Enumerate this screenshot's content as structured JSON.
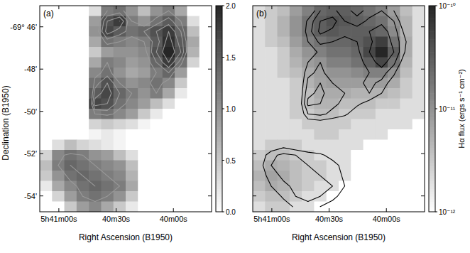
{
  "chart_data": [
    {
      "type": "heatmap",
      "title": "(a)",
      "x_label": "Right Ascension (B1950)",
      "y_label": "Declination (B1950)",
      "xlim": [
        20470,
        20380
      ],
      "xticks": [
        {
          "value": 20460,
          "label": "5h41m00s"
        },
        {
          "value": 20430,
          "label": "40m30s"
        },
        {
          "value": 20400,
          "label": "40m00s"
        }
      ],
      "ylim": [
        -54.75,
        -45
      ],
      "yticks": [
        {
          "value": -46,
          "label": "-69° 46'"
        },
        {
          "value": -48,
          "label": "-48'"
        },
        {
          "value": -50,
          "label": "-50'"
        },
        {
          "value": -52,
          "label": "-52'"
        },
        {
          "value": -54,
          "label": "-54'"
        }
      ],
      "cells": [
        [
          0,
          0,
          0,
          0,
          0.3,
          1.2,
          1.3,
          1.0,
          0.6,
          1.0,
          1.2,
          0.8,
          0,
          0
        ],
        [
          0,
          0,
          0,
          0,
          0.9,
          1.6,
          1.8,
          1.2,
          1.0,
          1.3,
          1.5,
          1.2,
          0.3,
          0
        ],
        [
          0,
          0,
          0,
          0,
          1.0,
          1.7,
          1.5,
          1.3,
          1.4,
          1.6,
          1.8,
          1.4,
          0.6,
          0
        ],
        [
          0,
          0,
          0,
          0,
          0.8,
          1.3,
          1.2,
          1.1,
          1.2,
          1.5,
          1.9,
          1.5,
          0.8,
          0
        ],
        [
          0,
          0,
          0,
          0,
          0.5,
          0.9,
          1.0,
          1.0,
          1.1,
          1.6,
          2.0,
          1.6,
          0.7,
          0
        ],
        [
          0,
          0,
          0,
          0,
          0.8,
          1.2,
          1.1,
          0.9,
          1.0,
          1.4,
          1.8,
          1.3,
          0.4,
          0
        ],
        [
          0,
          0,
          0,
          0,
          1.1,
          1.3,
          1.0,
          0.8,
          0.9,
          1.2,
          1.4,
          0.9,
          0,
          0
        ],
        [
          0,
          0,
          0,
          0,
          1.3,
          1.6,
          1.2,
          1.0,
          1.1,
          1.3,
          1.1,
          0.5,
          0,
          0
        ],
        [
          0,
          0,
          0,
          0,
          1.5,
          1.7,
          1.4,
          1.2,
          1.0,
          1.2,
          0.8,
          0.2,
          0,
          0
        ],
        [
          0,
          0,
          0,
          0,
          1.7,
          1.6,
          1.3,
          1.1,
          0.9,
          0.6,
          0.3,
          0,
          0,
          0
        ],
        [
          0,
          0,
          0,
          0,
          1.2,
          1.3,
          1.1,
          0.9,
          0.5,
          0.2,
          0,
          0,
          0,
          0
        ],
        [
          0,
          0,
          0,
          0,
          0.4,
          0.5,
          0.4,
          0.3,
          0.1,
          0,
          0,
          0,
          0,
          0
        ],
        [
          0,
          0,
          0,
          0,
          0.1,
          0.2,
          0.1,
          0,
          0,
          0,
          0,
          0,
          0,
          0
        ],
        [
          0,
          0.3,
          0.6,
          0.4,
          0.3,
          0.2,
          0.1,
          0,
          0,
          0,
          0,
          0,
          0,
          0
        ],
        [
          0.4,
          1.1,
          1.3,
          1.2,
          1.0,
          0.9,
          0.6,
          0.3,
          0,
          0,
          0,
          0,
          0,
          0
        ],
        [
          0.6,
          1.2,
          1.4,
          1.3,
          1.2,
          1.1,
          1.0,
          0.6,
          0,
          0,
          0,
          0,
          0,
          0
        ],
        [
          0.5,
          1.0,
          1.3,
          1.4,
          1.3,
          1.2,
          1.1,
          0.7,
          0,
          0,
          0,
          0,
          0,
          0
        ],
        [
          0.2,
          0.8,
          1.1,
          1.3,
          1.4,
          1.3,
          1.2,
          0.8,
          0,
          0,
          0,
          0,
          0,
          0
        ],
        [
          0,
          0.4,
          0.9,
          1.2,
          1.3,
          1.2,
          1.0,
          0.5,
          0,
          0,
          0,
          0,
          0,
          0
        ],
        [
          0,
          0,
          0.5,
          0.9,
          1.1,
          0.8,
          0.5,
          0.2,
          0,
          0,
          0,
          0,
          0,
          0
        ]
      ],
      "colorbar_range": [
        0,
        2
      ],
      "colorbar_ticks": [
        {
          "value": 0,
          "label": "0.0"
        },
        {
          "value": 0.5,
          "label": "0.5"
        },
        {
          "value": 1,
          "label": "1.0"
        },
        {
          "value": 1.5,
          "label": "1.5"
        },
        {
          "value": 2,
          "label": "2.0"
        }
      ],
      "contour_levels": [
        1.2,
        1.4,
        1.6,
        1.8
      ],
      "color": "#9a9a9a"
    },
    {
      "type": "heatmap",
      "title": "(b)",
      "x_label": "Right Ascension (B1950)",
      "xlim": [
        20470,
        20380
      ],
      "xticks": [
        {
          "value": 20460,
          "label": "5h41m00s"
        },
        {
          "value": 20430,
          "label": "40m30s"
        },
        {
          "value": 20400,
          "label": "40m00s"
        }
      ],
      "ylim": [
        -54.75,
        -45
      ],
      "yticks": [
        -46,
        -48,
        -50,
        -52,
        -54
      ],
      "tick_labels": "x",
      "log": true,
      "cells": [
        [
          2e-12,
          3e-12,
          4e-12,
          8e-12,
          1.5e-11,
          2.5e-11,
          3e-11,
          3e-11,
          2.5e-11,
          2e-11,
          1.5e-11,
          8e-12,
          4e-12,
          2e-12
        ],
        [
          2e-12,
          3e-12,
          5e-12,
          1e-11,
          2e-11,
          3e-11,
          4e-11,
          3.5e-11,
          3e-11,
          2.5e-11,
          2e-11,
          1e-11,
          5e-12,
          2e-12
        ],
        [
          2e-12,
          3e-12,
          5e-12,
          1e-11,
          2e-11,
          3e-11,
          3.5e-11,
          3e-11,
          3e-11,
          3e-11,
          2.5e-11,
          1.2e-11,
          5e-12,
          2e-12
        ],
        [
          2e-12,
          3e-12,
          4e-12,
          8e-12,
          1.5e-11,
          2e-11,
          2.5e-11,
          2.5e-11,
          3e-11,
          4e-11,
          6e-11,
          2e-11,
          6e-12,
          2e-12
        ],
        [
          2e-12,
          2e-12,
          3e-12,
          6e-12,
          1e-11,
          1.5e-11,
          2e-11,
          2e-11,
          2.5e-11,
          5e-11,
          1e-10,
          3e-11,
          6e-12,
          2e-12
        ],
        [
          2e-12,
          2e-12,
          3e-12,
          5e-12,
          8e-12,
          1e-11,
          1.5e-11,
          1.5e-11,
          2e-11,
          3e-11,
          5e-11,
          2e-11,
          5e-12,
          2e-12
        ],
        [
          2e-12,
          2e-12,
          3e-12,
          4e-12,
          6e-12,
          8e-12,
          1e-11,
          1e-11,
          1.2e-11,
          1.5e-11,
          1.5e-11,
          1e-11,
          4e-12,
          2e-12
        ],
        [
          2e-12,
          2e-12,
          2e-12,
          3e-12,
          5e-12,
          7e-12,
          8e-12,
          8e-12,
          8e-12,
          8e-12,
          8e-12,
          6e-12,
          3e-12,
          2e-12
        ],
        [
          2e-12,
          2e-12,
          2e-12,
          3e-12,
          4e-12,
          6e-12,
          6e-12,
          6e-12,
          5e-12,
          5e-12,
          5e-12,
          4e-12,
          3e-12,
          2e-12
        ],
        [
          2e-12,
          2e-12,
          2e-12,
          3e-12,
          4e-12,
          5e-12,
          5e-12,
          4e-12,
          4e-12,
          4e-12,
          3e-12,
          3e-12,
          2e-12,
          2e-12
        ],
        [
          2e-12,
          2e-12,
          2e-12,
          3e-12,
          3e-12,
          4e-12,
          4e-12,
          3e-12,
          3e-12,
          3e-12,
          2e-12,
          2e-12,
          2e-12,
          2e-12
        ],
        [
          2e-12,
          2e-12,
          2e-12,
          2e-12,
          3e-12,
          3e-12,
          3e-12,
          3e-12,
          2e-12,
          2e-12,
          2e-12,
          2e-12,
          2e-12,
          1e-12
        ],
        [
          2e-12,
          2e-12,
          2e-12,
          2e-12,
          2e-12,
          3e-12,
          3e-12,
          2e-12,
          2e-12,
          2e-12,
          2e-12,
          1e-12,
          1e-12,
          1e-12
        ],
        [
          2e-12,
          3e-12,
          3e-12,
          3e-12,
          2e-12,
          2e-12,
          2e-12,
          2e-12,
          2e-12,
          1e-12,
          1e-12,
          1e-12,
          1e-12,
          1e-12
        ],
        [
          3e-12,
          4e-12,
          4e-12,
          3e-12,
          3e-12,
          2e-12,
          2e-12,
          2e-12,
          1e-12,
          1e-12,
          1e-12,
          1e-12,
          1e-12,
          1e-12
        ],
        [
          4e-12,
          6e-12,
          5e-12,
          4e-12,
          3e-12,
          3e-12,
          2e-12,
          2e-12,
          1e-12,
          1e-12,
          1e-12,
          1e-12,
          1e-12,
          1e-12
        ],
        [
          5e-12,
          7e-12,
          6e-12,
          4e-12,
          3e-12,
          3e-12,
          2e-12,
          2e-12,
          1e-12,
          1e-12,
          1e-12,
          1e-12,
          1e-12,
          1e-12
        ],
        [
          4e-12,
          6e-12,
          5e-12,
          4e-12,
          3e-12,
          2e-12,
          2e-12,
          1e-12,
          1e-12,
          1e-12,
          1e-12,
          1e-12,
          1e-12,
          1e-12
        ],
        [
          3e-12,
          4e-12,
          4e-12,
          3e-12,
          2e-12,
          2e-12,
          1e-12,
          1e-12,
          1e-12,
          1e-12,
          1e-12,
          1e-12,
          1e-12,
          1e-12
        ],
        [
          2e-12,
          3e-12,
          3e-12,
          2e-12,
          2e-12,
          1e-12,
          1e-12,
          1e-12,
          1e-12,
          1e-12,
          1e-12,
          1e-12,
          1e-12,
          1e-12
        ]
      ],
      "colorbar_range": [
        1e-12,
        1e-10
      ],
      "colorbar_ticks": [
        {
          "value": 1e-12,
          "label": "10⁻¹²"
        },
        {
          "value": 1e-11,
          "label": "10⁻¹¹"
        },
        {
          "value": 1e-10,
          "label": "10⁻¹⁰"
        }
      ],
      "colorbar_label": "Hα flux (ergs s⁻¹ cm⁻²)",
      "contour_levels": [
        0.8,
        1.2,
        1.6
      ],
      "color": "#000000"
    }
  ]
}
